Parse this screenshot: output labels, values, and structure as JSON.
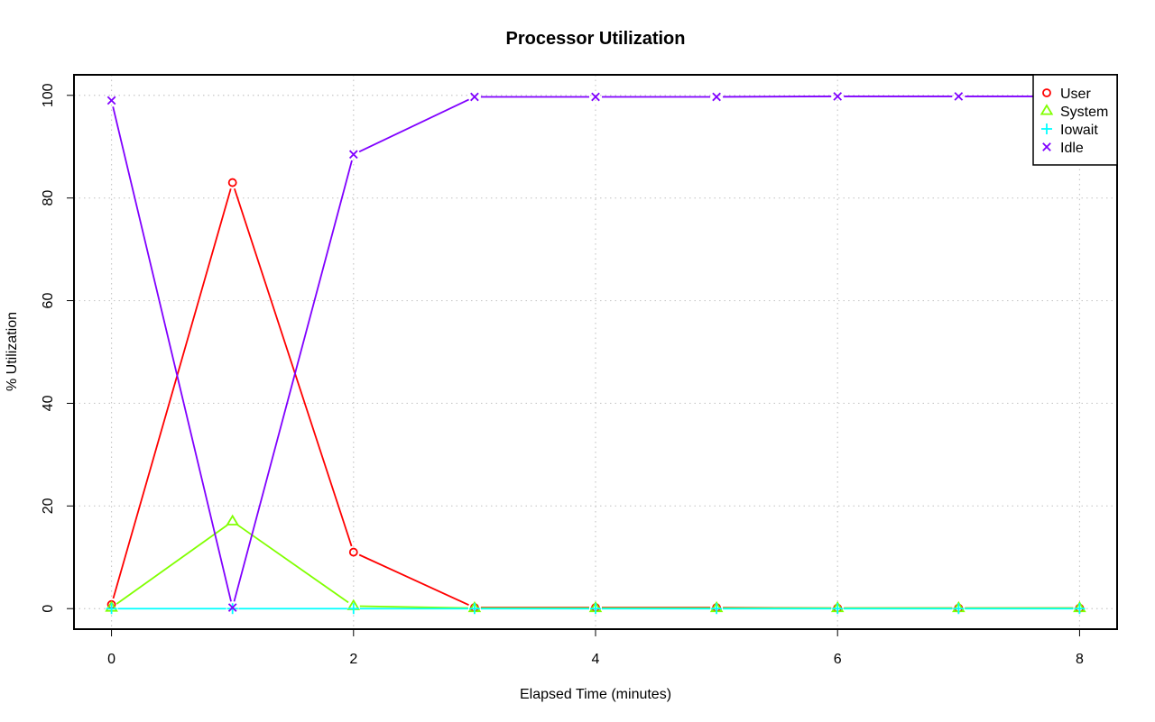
{
  "chart_data": {
    "type": "line",
    "title": "Processor Utilization",
    "xlabel": "Elapsed Time (minutes)",
    "ylabel": "% Utilization",
    "x": [
      0,
      1,
      2,
      3,
      4,
      5,
      6,
      7,
      8
    ],
    "xlim": [
      -0.31,
      8.31
    ],
    "ylim": [
      -4,
      104
    ],
    "xticks": [
      0,
      2,
      4,
      6,
      8
    ],
    "yticks": [
      0,
      20,
      40,
      60,
      80,
      100
    ],
    "grid": true,
    "legend_position": "top-right",
    "series": [
      {
        "name": "User",
        "color": "#ff0000",
        "marker": "circle",
        "values": [
          0.8,
          83,
          11,
          0.2,
          0.2,
          0.2,
          0.1,
          0.1,
          0.1
        ]
      },
      {
        "name": "System",
        "color": "#80ff00",
        "marker": "triangle",
        "values": [
          0.2,
          17,
          0.5,
          0.1,
          0.1,
          0.1,
          0.1,
          0.1,
          0.1
        ]
      },
      {
        "name": "Iowait",
        "color": "#00ffff",
        "marker": "plus",
        "values": [
          0,
          0,
          0,
          0,
          0,
          0,
          0,
          0,
          0
        ]
      },
      {
        "name": "Idle",
        "color": "#8000ff",
        "marker": "cross",
        "values": [
          99,
          0.2,
          88.5,
          99.7,
          99.7,
          99.7,
          99.8,
          99.8,
          99.8
        ]
      }
    ]
  }
}
